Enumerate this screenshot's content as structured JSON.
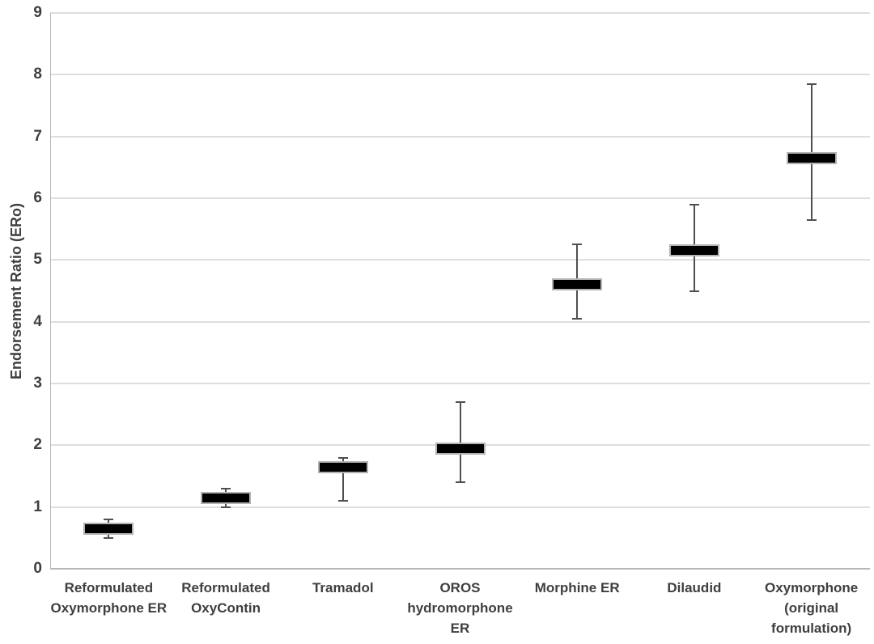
{
  "chart_data": {
    "type": "scatter",
    "subtype": "point-estimate-with-error-bars",
    "title": "",
    "xlabel": "",
    "ylabel": "Endorsement Ratio (ERo)",
    "ylim": [
      0,
      9
    ],
    "yticks": [
      0,
      1,
      2,
      3,
      4,
      5,
      6,
      7,
      8,
      9
    ],
    "grid": "horizontal",
    "legend": "none",
    "marker": "thick black horizontal bar with vertical error whiskers",
    "categories": [
      "Reformulated\nOxymorphone ER",
      "Reformulated\nOxyContin",
      "Tramadol",
      "OROS\nhydromorphone\nER",
      "Morphine ER",
      "Dilaudid",
      "Oxymorphone\n(original\nformulation)"
    ],
    "points": [
      {
        "value": 0.65,
        "ci_low": 0.5,
        "ci_high": 0.8
      },
      {
        "value": 1.15,
        "ci_low": 1.0,
        "ci_high": 1.3
      },
      {
        "value": 1.65,
        "ci_low": 1.1,
        "ci_high": 1.8
      },
      {
        "value": 1.95,
        "ci_low": 1.4,
        "ci_high": 2.7
      },
      {
        "value": 4.6,
        "ci_low": 4.05,
        "ci_high": 5.25
      },
      {
        "value": 5.15,
        "ci_low": 4.5,
        "ci_high": 5.9
      },
      {
        "value": 6.65,
        "ci_low": 5.65,
        "ci_high": 7.85
      }
    ],
    "colors": {
      "background": "#ffffff",
      "bar_fill": "#000000",
      "bar_border": "#b3b3b3",
      "whisker": "#4f4f4f",
      "gridline": "#dedede",
      "axis": "#b7b7b7",
      "text": "#3f3f3f"
    }
  }
}
